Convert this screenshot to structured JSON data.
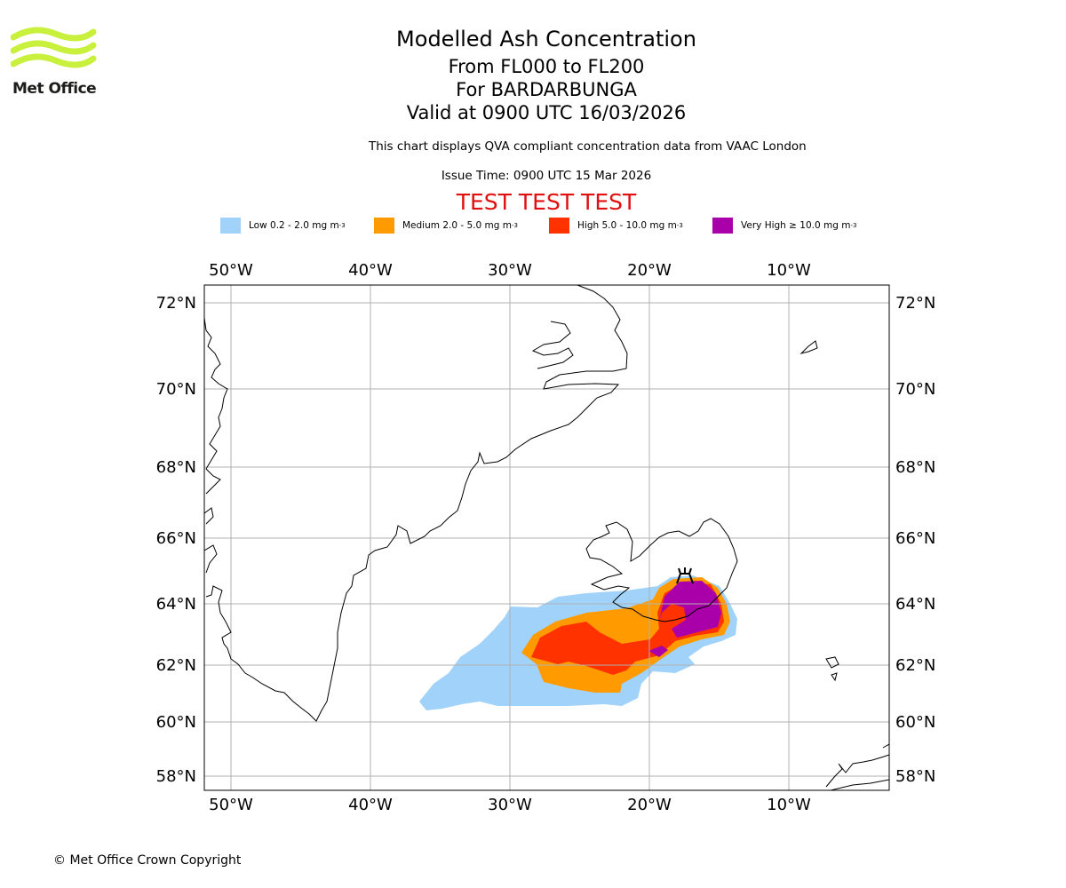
{
  "header": {
    "title": "Modelled Ash Concentration",
    "level": "From FL000 to FL200",
    "volcano": "For BARDARBUNGA",
    "valid": "Valid at 0900 UTC 16/03/2026",
    "note": "This chart displays QVA compliant concentration data from VAAC London",
    "issue": "Issue Time: 0900 UTC 15 Mar 2026",
    "test": "TEST TEST TEST"
  },
  "brand": {
    "logo_text": "Met Office",
    "logo_color": "#c8f03c"
  },
  "legend": [
    {
      "label": "Low 0.2 - 2.0 mg m",
      "sup": "-3",
      "color": "#a0d2fa"
    },
    {
      "label": "Medium 2.0 - 5.0 mg m",
      "sup": "-3",
      "color": "#ff9b00"
    },
    {
      "label": "High 5.0 - 10.0 mg m",
      "sup": "-3",
      "color": "#ff3200"
    },
    {
      "label": "Very High ≥ 10.0 mg m",
      "sup": "-3",
      "color": "#aa00aa"
    }
  ],
  "map": {
    "lon_labels": [
      "50°W",
      "40°W",
      "30°W",
      "20°W",
      "10°W"
    ],
    "lat_labels": [
      "72°N",
      "70°N",
      "68°N",
      "66°N",
      "64°N",
      "62°N",
      "60°N",
      "58°N"
    ]
  },
  "footer": {
    "copyright": "© Met Office Crown Copyright"
  }
}
